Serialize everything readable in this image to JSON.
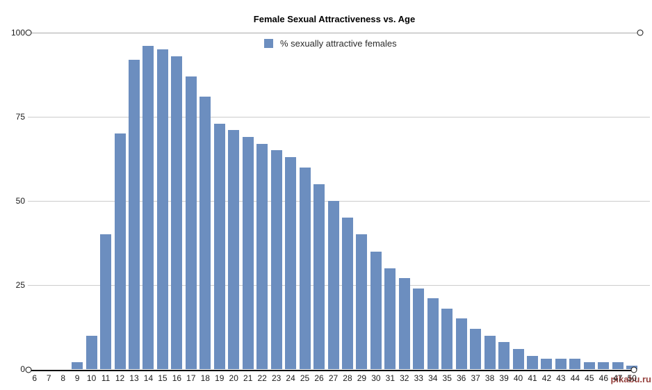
{
  "chart": {
    "title": "Female Sexual Attractiveness vs. Age",
    "legend": "% sexually attractive females"
  },
  "watermark": "pikabu.ru",
  "colors": {
    "bar": "#6C8EBF",
    "gridline": "#CCCCCC",
    "top_line": "#A9A9A9",
    "axis_line": "#000000"
  },
  "chart_data": {
    "type": "bar",
    "title": "Female Sexual Attractiveness vs. Age",
    "xlabel": "",
    "ylabel": "",
    "legend_entries": [
      "% sexually attractive females"
    ],
    "legend_position": "top-center",
    "grid": true,
    "ylim": [
      0,
      100
    ],
    "yticks": [
      0,
      25,
      50,
      75,
      100
    ],
    "categories": [
      "6",
      "7",
      "8",
      "9",
      "10",
      "11",
      "12",
      "13",
      "14",
      "15",
      "16",
      "17",
      "18",
      "19",
      "20",
      "21",
      "22",
      "23",
      "24",
      "25",
      "26",
      "27",
      "28",
      "29",
      "30",
      "31",
      "32",
      "33",
      "34",
      "35",
      "36",
      "37",
      "38",
      "39",
      "40",
      "41",
      "42",
      "43",
      "44",
      "45",
      "46",
      "47",
      "50"
    ],
    "values": [
      0,
      0,
      0,
      2,
      10,
      40,
      70,
      92,
      96,
      95,
      93,
      87,
      81,
      73,
      71,
      69,
      67,
      65,
      63,
      60,
      55,
      50,
      45,
      40,
      35,
      30,
      27,
      24,
      21,
      18,
      15,
      12,
      10,
      8,
      6,
      4,
      3,
      3,
      3,
      2,
      2,
      2,
      1
    ]
  }
}
